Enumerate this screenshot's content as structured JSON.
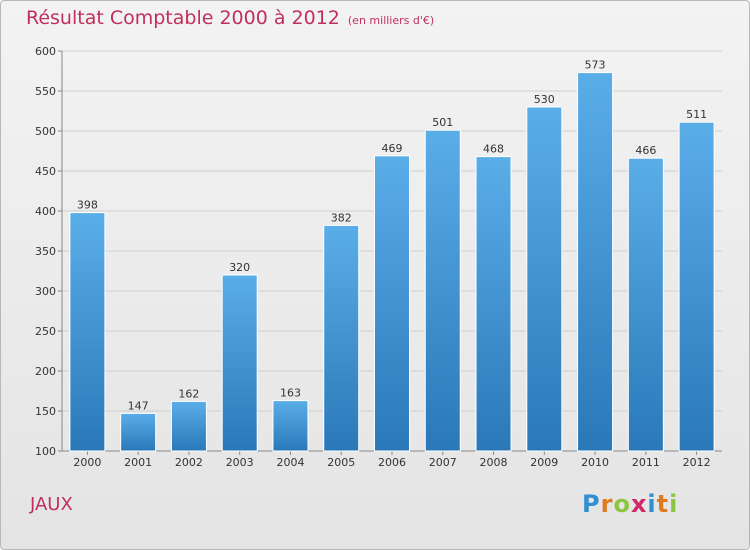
{
  "chart_data": {
    "type": "bar",
    "title": "Résultat Comptable 2000 à 2012",
    "unit_note": "(en milliers d'€)",
    "categories": [
      "2000",
      "2001",
      "2002",
      "2003",
      "2004",
      "2005",
      "2006",
      "2007",
      "2008",
      "2009",
      "2010",
      "2011",
      "2012"
    ],
    "values": [
      398,
      147,
      162,
      320,
      163,
      382,
      469,
      501,
      468,
      530,
      573,
      466,
      511
    ],
    "ylim": [
      100,
      600
    ],
    "yticks": [
      100,
      150,
      200,
      250,
      300,
      350,
      400,
      450,
      500,
      550,
      600
    ],
    "xlabel": "",
    "ylabel": "",
    "grid": true,
    "bar_color": "#3a8fd4"
  },
  "place_name": "JAUX",
  "brand": {
    "letters": [
      "P",
      "r",
      "o",
      "x",
      "i",
      "t",
      "i"
    ],
    "colors": [
      "#2f8fd0",
      "#e07a1f",
      "#8cc63f",
      "#d2286a",
      "#2f8fd0",
      "#e07a1f",
      "#8cc63f"
    ]
  }
}
